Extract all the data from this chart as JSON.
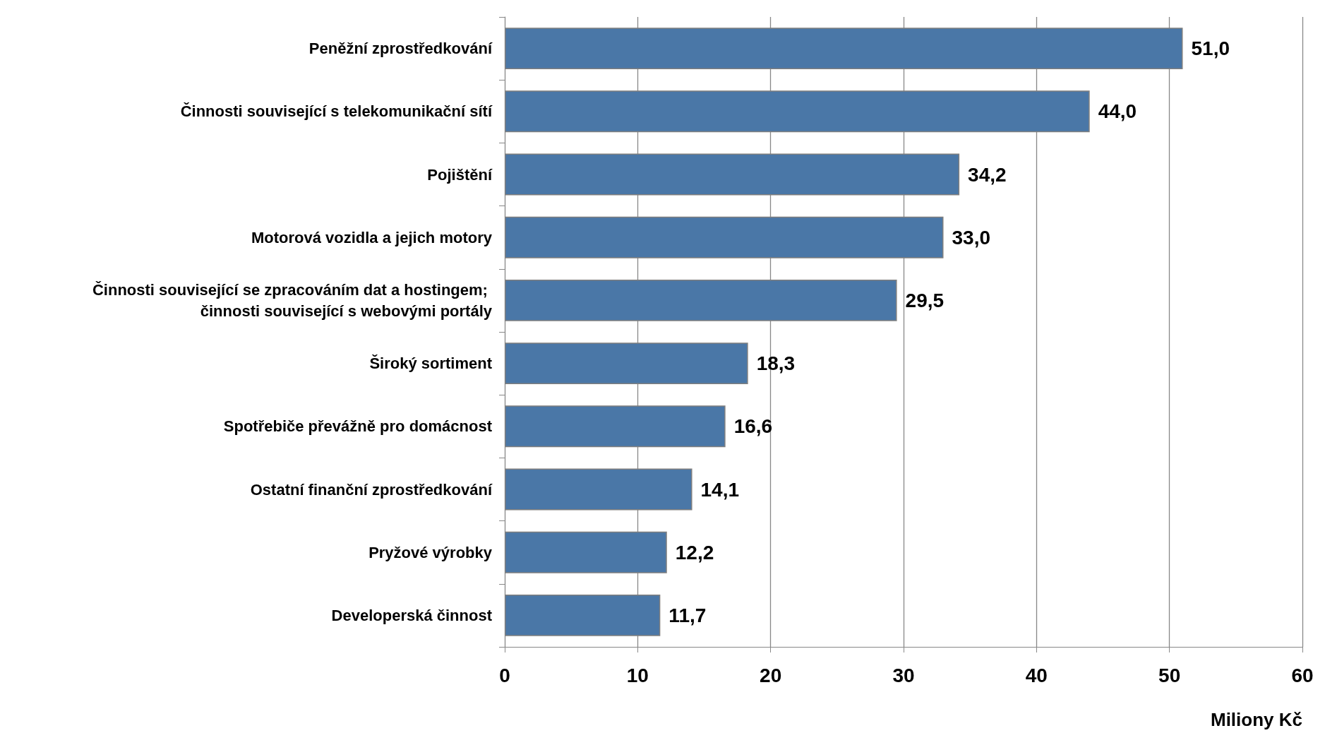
{
  "chart_data": {
    "type": "bar",
    "orientation": "horizontal",
    "categories": [
      "Peněžní zprostředkování",
      "Činnosti související s telekomunikační sítí",
      "Pojištění",
      "Motorová vozidla a jejich motory",
      "Činnosti související se zpracováním dat a hostingem; činnosti související s webovými portály",
      "Široký sortiment",
      "Spotřebiče převážně pro domácnost",
      "Ostatní finanční zprostředkování",
      "Pryžové výrobky",
      "Developerská činnost"
    ],
    "values": [
      51.0,
      44.0,
      34.2,
      33.0,
      29.5,
      18.3,
      16.6,
      14.1,
      12.2,
      11.7
    ],
    "value_labels": [
      "51,0",
      "44,0",
      "34,2",
      "33,0",
      "29,5",
      "18,3",
      "16,6",
      "14,1",
      "12,2",
      "11,7"
    ],
    "color": "#4a77a7",
    "xlabel": "Miliony Kč",
    "xlim": [
      0,
      60
    ],
    "xticks": [
      0,
      10,
      20,
      30,
      40,
      50,
      60
    ],
    "grid": "x"
  }
}
